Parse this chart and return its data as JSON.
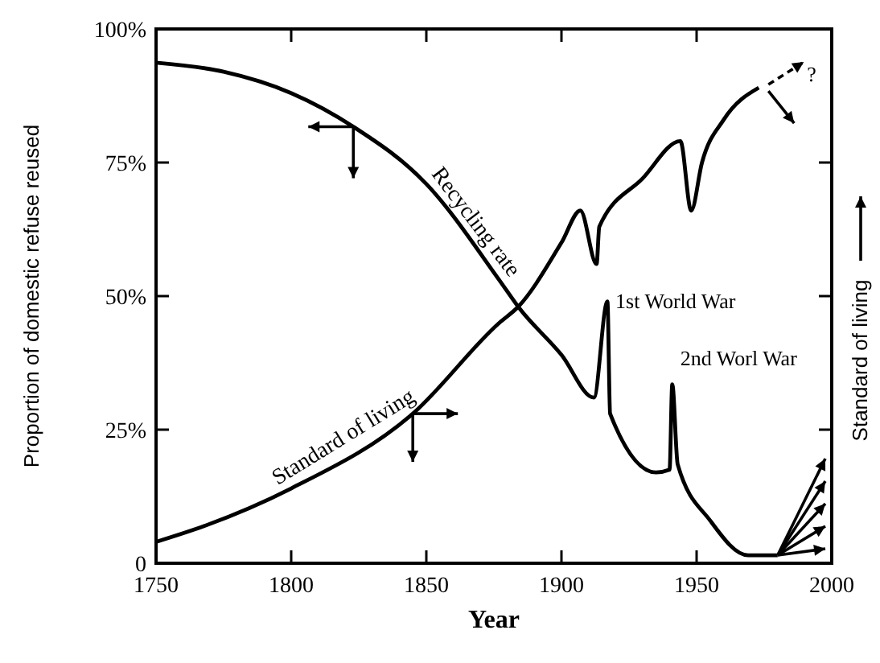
{
  "chart_data": {
    "type": "line",
    "xlabel": "Year",
    "ylabel": "Proportion of domestic refuse reused",
    "y2label": "Standard of living",
    "xlim": [
      1750,
      2000
    ],
    "xticks": [
      1750,
      1800,
      1850,
      1900,
      1950,
      2000
    ],
    "ylim": [
      0,
      100
    ],
    "yticks": [
      0,
      {
        "value": 25,
        "label": "25%"
      },
      {
        "value": 50,
        "label": "50%"
      },
      {
        "value": 75,
        "label": "75%"
      },
      {
        "value": 100,
        "label": "100%"
      }
    ],
    "marker": "none",
    "line_style": "solid",
    "series": [
      {
        "name": "Recycling rate",
        "color": "#000000",
        "x": [
          1750,
          1775,
          1800,
          1823,
          1850,
          1877,
          1884,
          1900,
          1912,
          1917,
          1918,
          1935,
          1940,
          1941,
          1943,
          1955,
          1969,
          1980
        ],
        "values": [
          93.7,
          92,
          88,
          81.7,
          71,
          53,
          48,
          39,
          31,
          49,
          28,
          17,
          17.5,
          33.5,
          18.5,
          8,
          1.5,
          1.5
        ]
      },
      {
        "name": "Standard of living",
        "color": "#000000",
        "x": [
          1750,
          1768,
          1800,
          1845,
          1877,
          1884,
          1900,
          1907,
          1913,
          1914,
          1930,
          1944,
          1948,
          1952,
          1960,
          1973
        ],
        "values": [
          4,
          7,
          14,
          28,
          45,
          48,
          60,
          66,
          56,
          63,
          72,
          79,
          66,
          75,
          83,
          89
        ]
      }
    ],
    "annotations": [
      {
        "text": "1st World War",
        "x": 1917,
        "y": 49
      },
      {
        "text": "2nd Worl War",
        "x": 1941,
        "y": 33.5
      },
      "?"
    ]
  }
}
